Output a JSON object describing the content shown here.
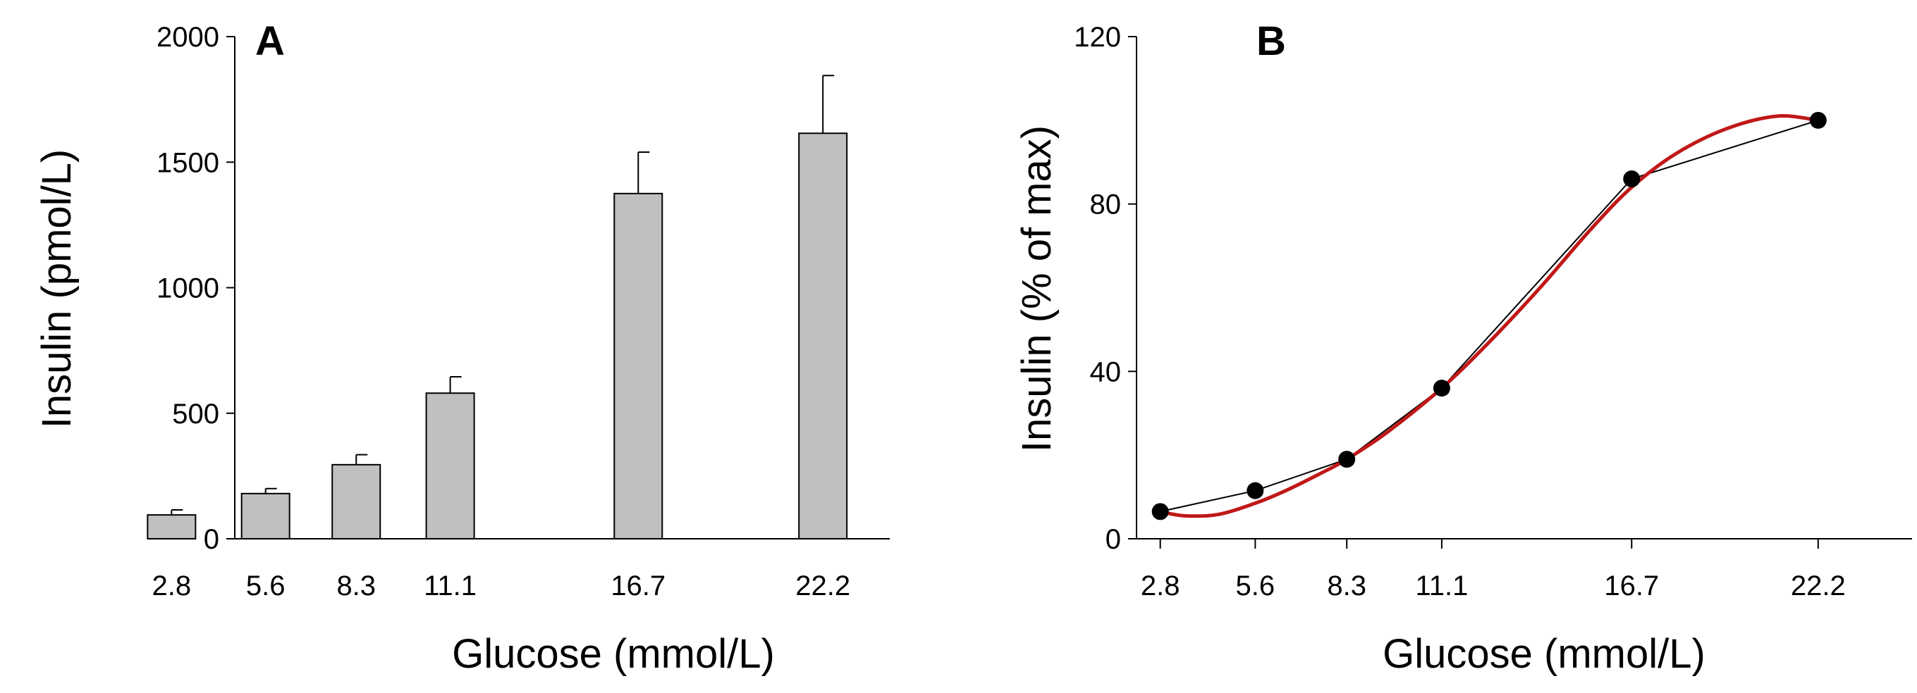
{
  "chart_data": [
    {
      "panel": "A",
      "type": "bar",
      "title": "",
      "xlabel": "Glucose (mmol/L)",
      "ylabel": "Insulin (pmol/L)",
      "ylim": [
        0,
        2000
      ],
      "yticks": [
        "0",
        "500",
        "1000",
        "1500",
        "2000"
      ],
      "ytick_values": [
        0,
        500,
        1000,
        1500,
        2000
      ],
      "categories": [
        "2.8",
        "5.6",
        "8.3",
        "11.1",
        "16.7",
        "22.2"
      ],
      "x_values": [
        2.8,
        5.6,
        8.3,
        11.1,
        16.7,
        22.2
      ],
      "values": [
        95,
        180,
        295,
        580,
        1375,
        1615
      ],
      "errors": [
        20,
        20,
        40,
        65,
        165,
        230
      ],
      "colors": {
        "bar_fill": "#c0c0c0",
        "bar_stroke": "#000000"
      }
    },
    {
      "panel": "B",
      "type": "line",
      "title": "",
      "xlabel": "Glucose (mmol/L)",
      "ylabel": "Insulin (% of max)",
      "ylim": [
        0,
        120
      ],
      "yticks": [
        "0",
        "40",
        "80",
        "120"
      ],
      "ytick_values": [
        0,
        40,
        80,
        120
      ],
      "xticks": [
        "2.8",
        "5.6",
        "8.3",
        "11.1",
        "16.7",
        "22.2"
      ],
      "x": [
        2.8,
        5.6,
        8.3,
        11.1,
        16.7,
        22.2
      ],
      "series": [
        {
          "name": "data",
          "values": [
            6.5,
            11.5,
            19,
            36,
            86,
            100
          ],
          "color": "#000000"
        },
        {
          "name": "fit",
          "color": "#c01818",
          "x": [
            2.8,
            3.5,
            4.5,
            5.6,
            6.5,
            7.5,
            8.3,
            9.5,
            11.1,
            12.5,
            14,
            15.5,
            16.7,
            18,
            19.5,
            21,
            22.2
          ],
          "values": [
            6.5,
            5.5,
            5.8,
            8.5,
            11.5,
            15.5,
            19,
            25.5,
            36,
            47,
            60,
            74,
            84,
            92,
            98,
            101,
            100
          ]
        }
      ]
    }
  ]
}
